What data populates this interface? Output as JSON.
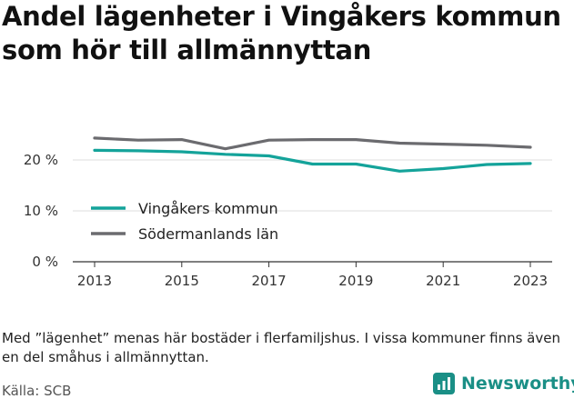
{
  "title": "Andel lägenheter i Vingåkers kommun som hör till allmännyttan",
  "note": "Med ”lägenhet” menas här bostäder i flerfamiljshus. I vissa kommuner finns även en del småhus i allmännyttan.",
  "source": "Källa: SCB",
  "brand": {
    "name": "Newsworthy",
    "icon": "newsworthy-logo-icon",
    "color": "#1a8f86"
  },
  "colors": {
    "vingaker": "#14a39a",
    "sodermanland": "#6b6b6f",
    "grid": "#dddddd",
    "axis": "#333333"
  },
  "chart_data": {
    "type": "line",
    "title": "Andel lägenheter i Vingåkers kommun som hör till allmännyttan",
    "x": [
      2013,
      2014,
      2015,
      2016,
      2017,
      2018,
      2019,
      2020,
      2021,
      2022,
      2023
    ],
    "x_ticks": [
      "2013",
      "2015",
      "2017",
      "2019",
      "2021",
      "2023"
    ],
    "y_ticks": [
      {
        "value": 0,
        "label": "0 %"
      },
      {
        "value": 10,
        "label": "10 %"
      },
      {
        "value": 20,
        "label": "20 %"
      }
    ],
    "ylim": [
      0,
      30
    ],
    "grid": true,
    "legend_position": "left-middle",
    "series": [
      {
        "name": "Vingåkers kommun",
        "color": "#14a39a",
        "values": [
          21.9,
          21.8,
          21.6,
          21.1,
          20.8,
          19.2,
          19.2,
          17.8,
          18.3,
          19.1,
          19.3
        ]
      },
      {
        "name": "Södermanlands län",
        "color": "#6b6b6f",
        "values": [
          24.3,
          23.9,
          24.0,
          22.2,
          23.9,
          24.0,
          24.0,
          23.3,
          23.1,
          22.9,
          22.5
        ]
      }
    ]
  }
}
